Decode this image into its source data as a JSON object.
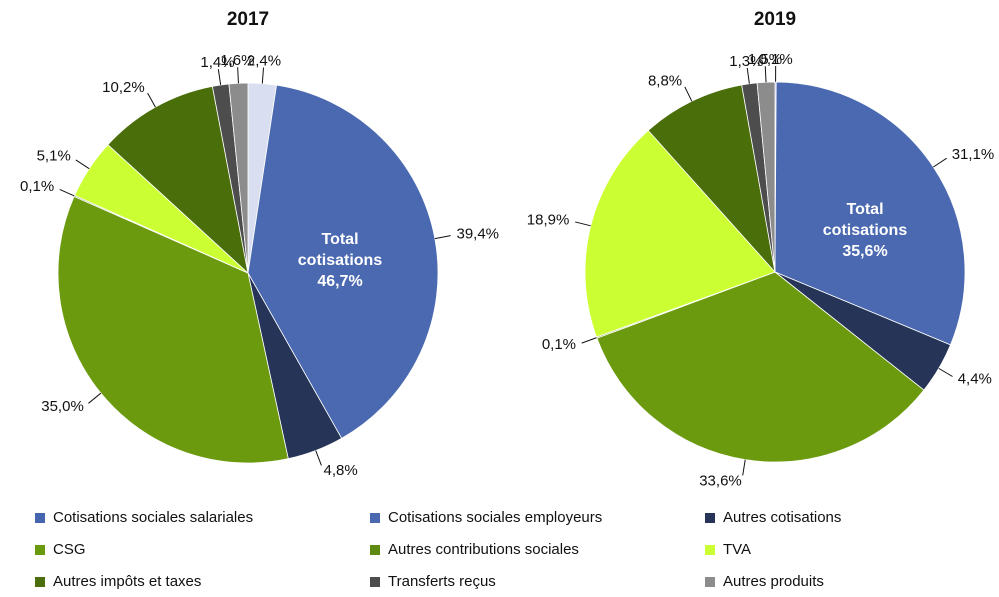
{
  "chart_data": [
    {
      "type": "pie",
      "title": "2017",
      "values": [
        2.4,
        39.4,
        4.8,
        35.0,
        0.1,
        5.1,
        10.2,
        1.4,
        1.6
      ],
      "value_labels": [
        "2,4%",
        "39,4%",
        "4,8%",
        "35,0%",
        "0,1%",
        "5,1%",
        "10,2%",
        "1,4%",
        "1,6%"
      ],
      "colors": [
        "#d9dff1",
        "#4a69b0",
        "#253457",
        "#6b9a0f",
        "#5e8a10",
        "#ccff33",
        "#4a6e0a",
        "#4d4d4d",
        "#8c8c8c"
      ],
      "annotation": [
        "Total",
        "cotisations",
        "46,7%"
      ]
    },
    {
      "type": "pie",
      "title": "2019",
      "values": [
        0.1,
        31.1,
        4.4,
        33.6,
        0.1,
        18.9,
        8.8,
        1.3,
        1.5
      ],
      "value_labels": [
        "0,1%",
        "31,1%",
        "4,4%",
        "33,6%",
        "0,1%",
        "18,9%",
        "8,8%",
        "1,3%",
        "1,5%"
      ],
      "colors": [
        "#4565ae",
        "#4a69b0",
        "#253457",
        "#6b9a0f",
        "#5e8a10",
        "#ccff33",
        "#4a6e0a",
        "#4d4d4d",
        "#8c8c8c"
      ],
      "annotation": [
        "Total",
        "cotisations",
        "35,6%"
      ]
    }
  ],
  "legend": {
    "labels": [
      "Cotisations sociales salariales",
      "Cotisations sociales employeurs",
      "Autres cotisations",
      "CSG",
      "Autres contributions sociales",
      "TVA",
      "Autres impôts et taxes",
      "Transferts reçus",
      "Autres produits"
    ],
    "colors": [
      "#4565ae",
      "#4a69b0",
      "#253457",
      "#6b9a0f",
      "#5e8a10",
      "#ccff33",
      "#4a6e0a",
      "#4d4d4d",
      "#8c8c8c"
    ]
  }
}
